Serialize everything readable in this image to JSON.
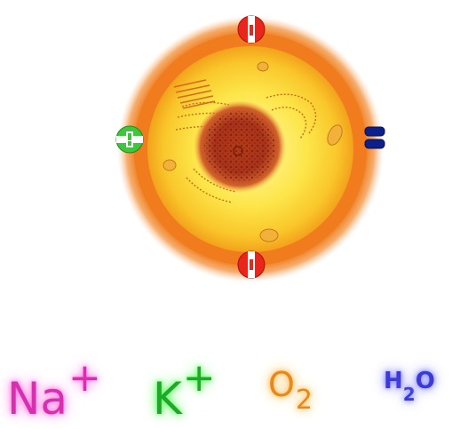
{
  "particles": [
    {
      "id": "na",
      "symbol": "Na",
      "modifier": "+",
      "color": "#d62fb0"
    },
    {
      "id": "k",
      "symbol": "K",
      "modifier": "+",
      "color": "#1fa82a"
    },
    {
      "id": "o2",
      "symbol": "O",
      "subscript": "2",
      "color": "#e58a1a"
    },
    {
      "id": "h2o",
      "symbol_a": "H",
      "subscript": "2",
      "symbol_b": "O",
      "color": "#3a3ad6"
    }
  ],
  "channels": [
    {
      "name": "top-channel",
      "color": "#e8261c"
    },
    {
      "name": "bottom-channel",
      "color": "#e8261c"
    },
    {
      "name": "left-channel",
      "color": "#3fc63f"
    },
    {
      "name": "right-channel",
      "color": "#0c1f8a"
    }
  ],
  "cell": {
    "membrane_color": "#f07c1e",
    "cytoplasm_color": "#fde64a",
    "nucleus_color": "#a8321a"
  }
}
